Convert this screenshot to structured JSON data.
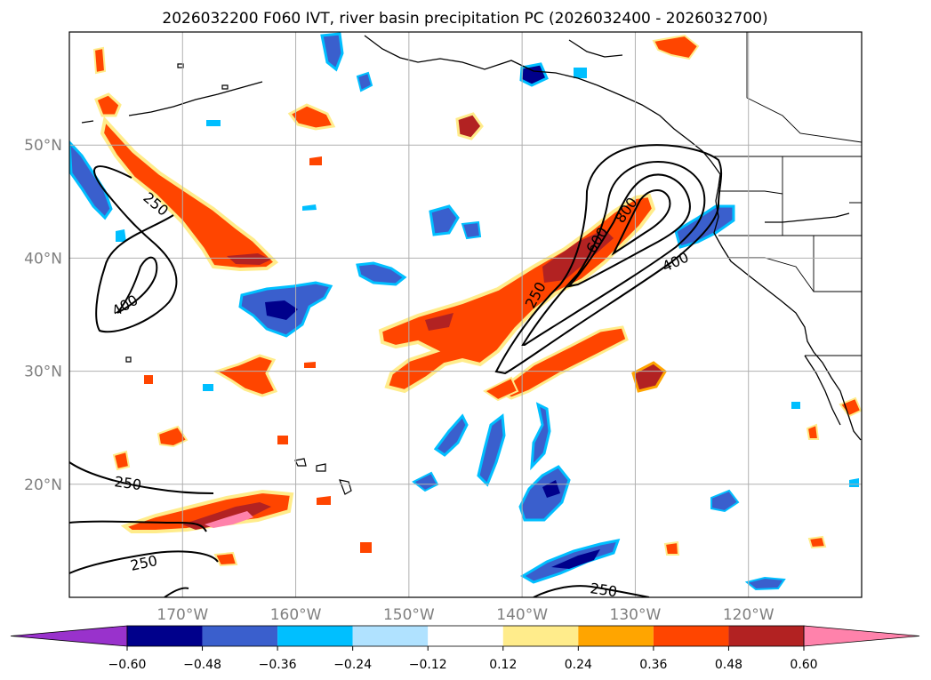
{
  "title": "2026032200 F060 IVT, river basin precipitation PC (2026032400 - 2026032700)",
  "map": {
    "lon_range": [
      -180,
      -110
    ],
    "lat_range": [
      10,
      60
    ],
    "grid_lons": [
      -170,
      -160,
      -150,
      -140,
      -130,
      -120
    ],
    "grid_lats": [
      20,
      30,
      40,
      50
    ],
    "lon_labels": [
      "170°W",
      "160°W",
      "150°W",
      "140°W",
      "130°W",
      "120°W"
    ],
    "lat_labels": [
      "20°N",
      "30°N",
      "40°N",
      "50°N"
    ],
    "contour_labels": [
      "250",
      "400",
      "250",
      "600",
      "800",
      "400",
      "250",
      "250",
      "250"
    ]
  },
  "colorbar": {
    "ticks": [
      "−0.60",
      "−0.48",
      "−0.36",
      "−0.24",
      "−0.12",
      "0.12",
      "0.24",
      "0.36",
      "0.48",
      "0.60"
    ],
    "colors": [
      "#9932cc",
      "#00008b",
      "#3a5fcd",
      "#00bfff",
      "#b0e2ff",
      "#ffffff",
      "#ffec8b",
      "#ffa500",
      "#ff4500",
      "#b22222",
      "#ff82ab"
    ]
  }
}
